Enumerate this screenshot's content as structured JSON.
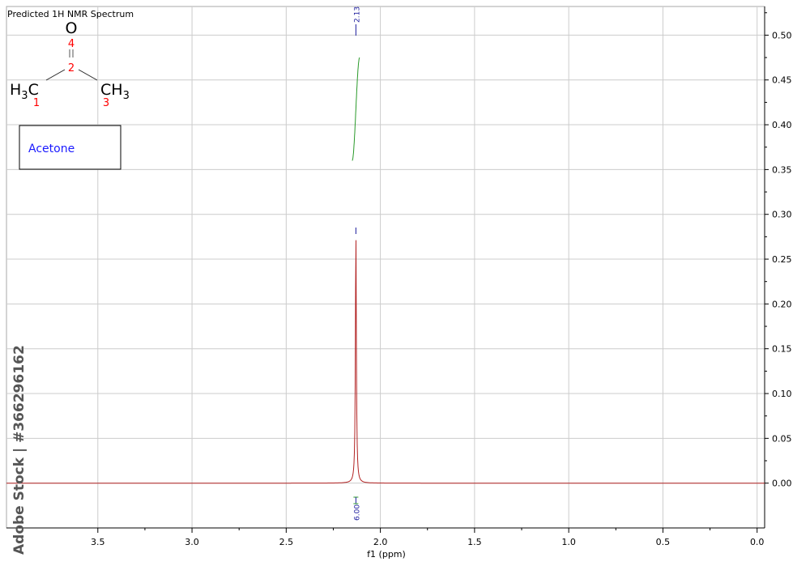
{
  "chart_data": {
    "type": "line",
    "title": "Predicted 1H NMR Spectrum",
    "xlabel": "f1 (ppm)",
    "ylabel": "",
    "xlim": [
      3.985,
      -0.04
    ],
    "ylim": [
      -0.05,
      0.532
    ],
    "x_ticks": [
      3.5,
      3.0,
      2.5,
      2.0,
      1.5,
      1.0,
      0.5,
      0.0
    ],
    "x_tick_labels": [
      "3.5",
      "3.0",
      "2.5",
      "2.0",
      "1.5",
      "1.0",
      "0.5",
      "0.0"
    ],
    "y_ticks": [
      0.0,
      0.05,
      0.1,
      0.15,
      0.2,
      0.25,
      0.3,
      0.35,
      0.4,
      0.45,
      0.5
    ],
    "y_tick_labels": [
      "0.00",
      "0.05",
      "0.10",
      "0.15",
      "0.20",
      "0.25",
      "0.30",
      "0.35",
      "0.40",
      "0.45",
      "0.50"
    ],
    "grid": true,
    "series": [
      {
        "peaks": [
          {
            "ppm": 2.13,
            "height": 0.28,
            "width": 0.006
          }
        ],
        "color": "#b22222"
      }
    ],
    "peak_label": {
      "ppm": 2.13,
      "text": "2.13",
      "color": "#1a1a9c"
    },
    "integral": {
      "ppm_start": 2.15,
      "ppm_end": 2.11,
      "y_start": 0.36,
      "y_end": 0.475,
      "label": "6.00",
      "color": "#2a9a2a"
    },
    "molecule": {
      "name": "Acetone",
      "atoms": [
        "O",
        "H3C",
        "CH3"
      ],
      "atom_numbers": [
        "4",
        "2",
        "1",
        "3"
      ]
    }
  },
  "watermark": "Adobe Stock | #366296162",
  "colors": {
    "grid": "#cccccc",
    "spectrum": "#b22222",
    "integral": "#2a9a2a",
    "label": "#1a1a9c",
    "name": "#1a1aff",
    "atom_number": "#ff0000"
  }
}
